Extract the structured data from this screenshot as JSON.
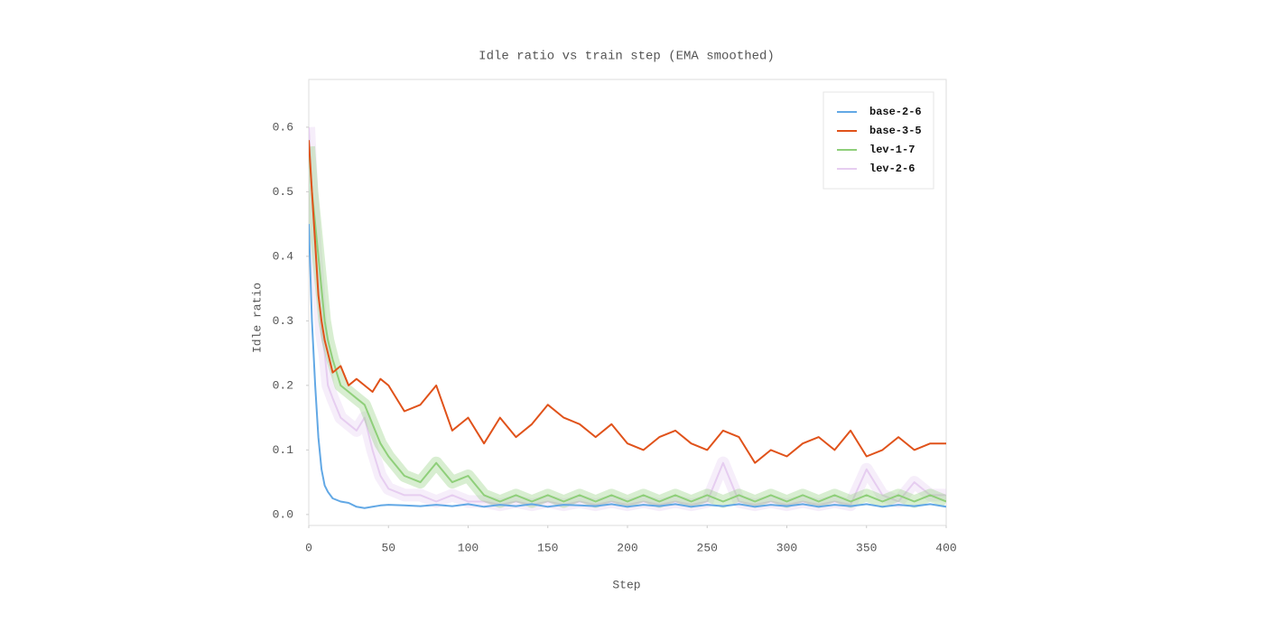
{
  "chart_data": {
    "type": "line",
    "title": "Idle ratio vs train step (EMA smoothed)",
    "x_label": "Step",
    "y_label": "Idle ratio",
    "x": [
      0,
      2,
      4,
      6,
      8,
      10,
      12,
      15,
      20,
      25,
      30,
      35,
      40,
      45,
      50,
      60,
      70,
      80,
      90,
      100,
      110,
      120,
      130,
      140,
      150,
      160,
      170,
      180,
      190,
      200,
      210,
      220,
      230,
      240,
      250,
      260,
      270,
      280,
      290,
      300,
      310,
      320,
      330,
      340,
      350,
      360,
      370,
      380,
      390,
      400
    ],
    "series": [
      {
        "name": "base-2-6",
        "color": "#62a8e5",
        "values": [
          0.45,
          0.3,
          0.2,
          0.12,
          0.07,
          0.045,
          0.035,
          0.025,
          0.02,
          0.018,
          0.012,
          0.01,
          0.012,
          0.014,
          0.015,
          0.014,
          0.013,
          0.015,
          0.013,
          0.016,
          0.012,
          0.015,
          0.013,
          0.016,
          0.012,
          0.015,
          0.014,
          0.013,
          0.016,
          0.012,
          0.015,
          0.013,
          0.016,
          0.012,
          0.015,
          0.013,
          0.016,
          0.012,
          0.015,
          0.013,
          0.016,
          0.012,
          0.015,
          0.013,
          0.016,
          0.012,
          0.015,
          0.013,
          0.016,
          0.012
        ]
      },
      {
        "name": "base-3-5",
        "color": "#e0521a",
        "values": [
          0.58,
          0.5,
          0.42,
          0.34,
          0.3,
          0.27,
          0.25,
          0.22,
          0.23,
          0.2,
          0.21,
          0.2,
          0.19,
          0.21,
          0.2,
          0.16,
          0.17,
          0.2,
          0.13,
          0.15,
          0.11,
          0.15,
          0.12,
          0.14,
          0.17,
          0.15,
          0.14,
          0.12,
          0.14,
          0.11,
          0.1,
          0.12,
          0.13,
          0.11,
          0.1,
          0.13,
          0.12,
          0.08,
          0.1,
          0.09,
          0.11,
          0.12,
          0.1,
          0.13,
          0.09,
          0.1,
          0.12,
          0.1,
          0.11,
          0.11
        ]
      },
      {
        "name": "lev-1-7",
        "color": "#8fcf7a",
        "values": [
          0.57,
          0.5,
          0.45,
          0.4,
          0.35,
          0.3,
          0.27,
          0.24,
          0.2,
          0.19,
          0.18,
          0.17,
          0.14,
          0.11,
          0.09,
          0.06,
          0.05,
          0.08,
          0.05,
          0.06,
          0.03,
          0.02,
          0.03,
          0.02,
          0.03,
          0.02,
          0.03,
          0.02,
          0.03,
          0.02,
          0.03,
          0.02,
          0.03,
          0.02,
          0.03,
          0.02,
          0.03,
          0.02,
          0.03,
          0.02,
          0.03,
          0.02,
          0.03,
          0.02,
          0.03,
          0.02,
          0.03,
          0.02,
          0.03,
          0.02
        ]
      },
      {
        "name": "lev-2-6",
        "color": "#e6cdf0",
        "values": [
          0.6,
          0.5,
          0.42,
          0.35,
          0.28,
          0.25,
          0.2,
          0.18,
          0.15,
          0.14,
          0.13,
          0.15,
          0.1,
          0.06,
          0.04,
          0.03,
          0.03,
          0.02,
          0.03,
          0.02,
          0.02,
          0.015,
          0.02,
          0.015,
          0.02,
          0.015,
          0.02,
          0.015,
          0.02,
          0.015,
          0.02,
          0.015,
          0.02,
          0.015,
          0.02,
          0.08,
          0.02,
          0.015,
          0.02,
          0.015,
          0.02,
          0.015,
          0.02,
          0.015,
          0.07,
          0.03,
          0.02,
          0.05,
          0.03,
          0.03
        ]
      }
    ],
    "xlim": [
      0,
      400
    ],
    "xticks": [
      0,
      50,
      100,
      150,
      200,
      250,
      300,
      350,
      400
    ],
    "ylim": [
      -0.017,
      0.674
    ],
    "yticks": [
      {
        "value": 0,
        "label": "0.0"
      },
      0.1,
      0.2,
      0.3,
      0.4,
      0.5,
      0.6
    ],
    "legend": "upper right"
  }
}
